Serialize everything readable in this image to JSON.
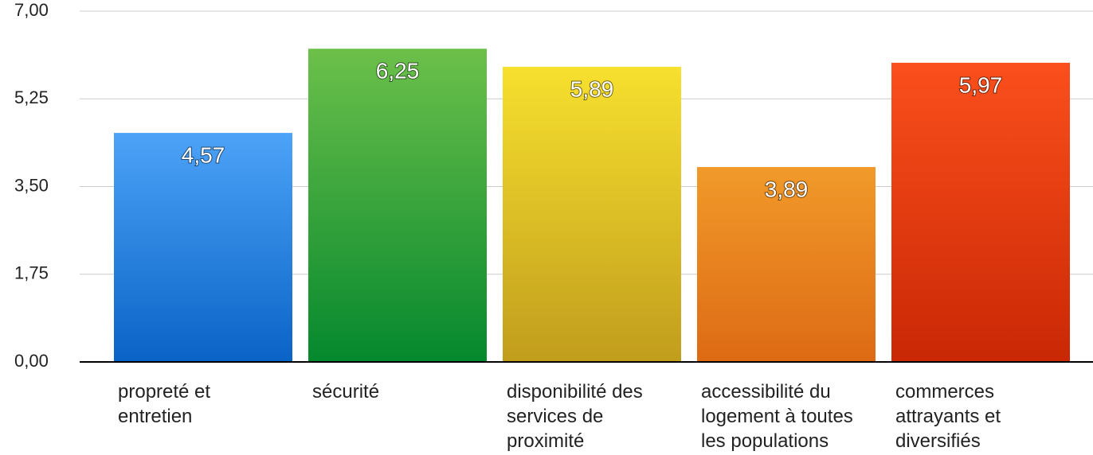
{
  "chart_data": {
    "type": "bar",
    "categories": [
      "propreté et entretien",
      "sécurité",
      "disponibilité des services de proximité",
      "accessibilité du logement à toutes les populations",
      "commerces attrayants et diversifiés"
    ],
    "values": [
      4.57,
      6.25,
      5.89,
      3.89,
      5.97
    ],
    "value_labels": [
      "4,57",
      "6,25",
      "5,89",
      "3,89",
      "5,97"
    ],
    "colors": [
      "#4da3f7",
      "#6cc04a",
      "#f7e02e",
      "#f19a2a",
      "#fb4f1c"
    ],
    "colors_bottom": [
      "#0a63c6",
      "#05882e",
      "#c19d1d",
      "#dd6a14",
      "#c92805"
    ],
    "ylim": [
      0,
      7
    ],
    "yticks": [
      {
        "value": 0,
        "label": "0,00"
      },
      {
        "value": 1.75,
        "label": "1,75"
      },
      {
        "value": 3.5,
        "label": "3,50"
      },
      {
        "value": 5.25,
        "label": "5,25"
      },
      {
        "value": 7,
        "label": "7,00"
      }
    ],
    "grid": true
  }
}
